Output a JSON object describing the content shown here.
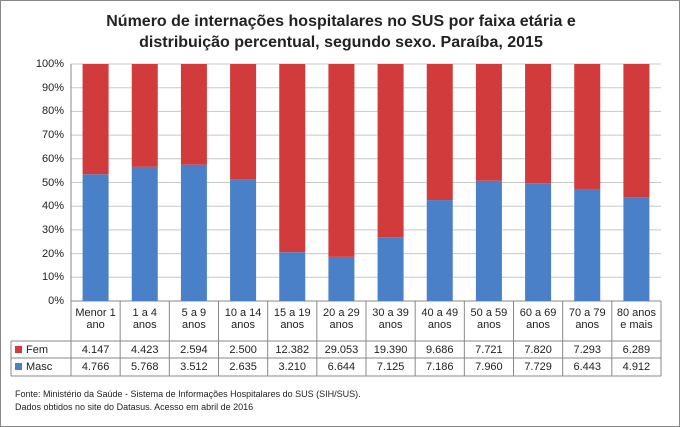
{
  "chart_data": {
    "type": "bar",
    "stacking": "percent",
    "title": "Número de internações hospitalares no SUS por faixa etária e distribuição percentual, segundo sexo. Paraíba, 2015",
    "categories": [
      "Menor 1 ano",
      "1 a 4 anos",
      "5 a 9 anos",
      "10 a 14 anos",
      "15 a 19 anos",
      "20 a 29 anos",
      "30 a 39 anos",
      "40 a 49 anos",
      "50 a 59 anos",
      "60 a 69 anos",
      "70 a 79 anos",
      "80 anos e mais"
    ],
    "series": [
      {
        "name": "Fem",
        "color": "#d13b3b",
        "values": [
          4147,
          4423,
          2594,
          2500,
          12382,
          29053,
          19390,
          9686,
          7721,
          7820,
          7293,
          6289
        ],
        "value_labels": [
          "4.147",
          "4.423",
          "2.594",
          "2.500",
          "12.382",
          "29.053",
          "19.390",
          "9.686",
          "7.721",
          "7.820",
          "7.293",
          "6.289"
        ]
      },
      {
        "name": "Masc",
        "color": "#4a80c8",
        "values": [
          4766,
          5768,
          3512,
          2635,
          3210,
          6644,
          7125,
          7186,
          7960,
          7729,
          6443,
          4912
        ],
        "value_labels": [
          "4.766",
          "5.768",
          "3.512",
          "2.635",
          "3.210",
          "6.644",
          "7.125",
          "7.186",
          "7.960",
          "7.729",
          "6.443",
          "4.912"
        ]
      }
    ],
    "ylim": [
      0,
      100
    ],
    "yticks": [
      {
        "value": 0,
        "label": "0%"
      },
      {
        "value": 10,
        "label": "10%"
      },
      {
        "value": 20,
        "label": "20%"
      },
      {
        "value": 30,
        "label": "30%"
      },
      {
        "value": 40,
        "label": "40%"
      },
      {
        "value": 50,
        "label": "50%"
      },
      {
        "value": 60,
        "label": "60%"
      },
      {
        "value": 70,
        "label": "70%"
      },
      {
        "value": 80,
        "label": "80%"
      },
      {
        "value": 90,
        "label": "90%"
      },
      {
        "value": 100,
        "label": "100%"
      }
    ],
    "grid": true,
    "source": "Fonte: Ministério da Saúde - Sistema de Informações Hospitalares do SUS (SIH/SUS).",
    "note": "Dados obtidos no site do Datasus. Acesso em abril de 2016"
  }
}
